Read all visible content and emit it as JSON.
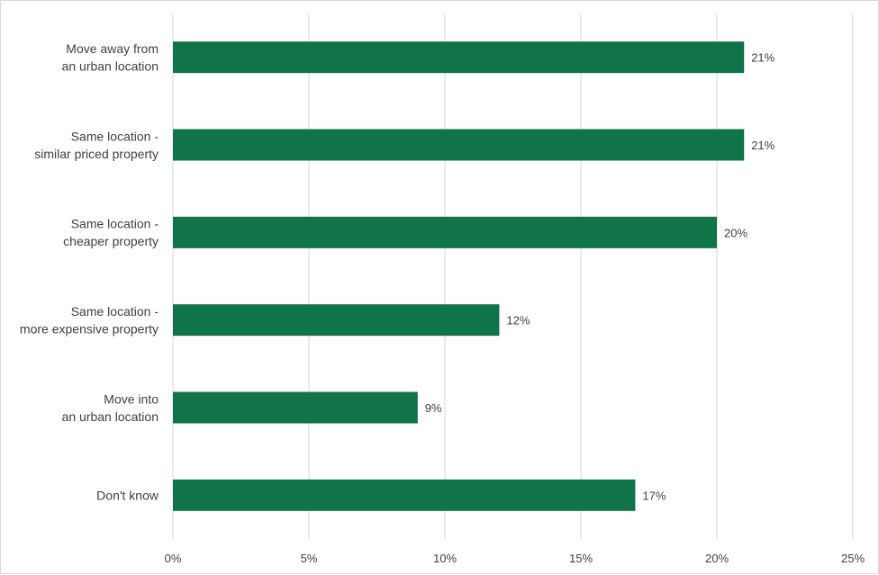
{
  "chart_data": {
    "type": "bar",
    "orientation": "horizontal",
    "title": "",
    "xlabel": "",
    "ylabel": "",
    "categories": [
      [
        "Move away from",
        "an urban location"
      ],
      [
        "Same location -",
        "similar priced property"
      ],
      [
        "Same location -",
        "cheaper property"
      ],
      [
        "Same location -",
        "more expensive property"
      ],
      [
        "Move into",
        "an urban location"
      ],
      [
        "Don't know"
      ]
    ],
    "values": [
      21,
      21,
      20,
      12,
      9,
      17
    ],
    "data_labels": [
      "21%",
      "21%",
      "20%",
      "12%",
      "9%",
      "17%"
    ],
    "xlim": [
      0,
      25
    ],
    "x_ticks": [
      0,
      5,
      10,
      15,
      20,
      25
    ],
    "x_tick_labels": [
      "0%",
      "5%",
      "10%",
      "15%",
      "20%",
      "25%"
    ],
    "grid": "vertical",
    "legend": "none",
    "colors": {
      "bar": "#10734a",
      "grid": "#d9d9d9",
      "text": "#404040"
    }
  }
}
